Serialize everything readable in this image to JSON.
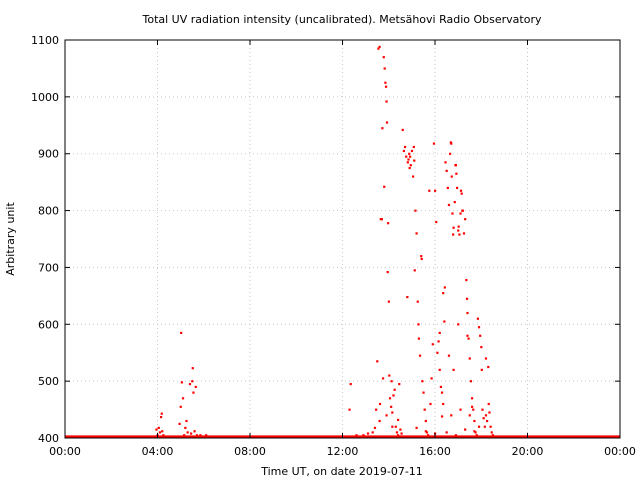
{
  "chart_data": {
    "type": "scatter",
    "title": "Total UV radiation intensity (uncalibrated). Metsähovi Radio Observatory",
    "xlabel": "Time UT, on date 2019-07-11",
    "ylabel": "Arbitrary unit",
    "xlim": [
      0,
      24
    ],
    "ylim": [
      400,
      1100
    ],
    "grid": true,
    "x_ticks": [
      {
        "value": 0,
        "label": "00:00"
      },
      {
        "value": 4,
        "label": "04:00"
      },
      {
        "value": 8,
        "label": "08:00"
      },
      {
        "value": 12,
        "label": "12:00"
      },
      {
        "value": 16,
        "label": "16:00"
      },
      {
        "value": 20,
        "label": "20:00"
      },
      {
        "value": 24,
        "label": "00:00"
      }
    ],
    "y_ticks": [
      400,
      500,
      600,
      700,
      800,
      900,
      1000,
      1100
    ],
    "series": [
      {
        "color": "#ff0000",
        "baseline": {
          "y": 402,
          "x_from": 0,
          "x_to": 24
        },
        "points": [
          [
            3.95,
            415
          ],
          [
            4.0,
            405
          ],
          [
            4.05,
            418
          ],
          [
            4.1,
            410
          ],
          [
            4.15,
            437
          ],
          [
            4.18,
            443
          ],
          [
            4.2,
            412
          ],
          [
            4.25,
            405
          ],
          [
            4.95,
            425
          ],
          [
            5.0,
            455
          ],
          [
            5.02,
            585
          ],
          [
            5.05,
            498
          ],
          [
            5.1,
            470
          ],
          [
            5.15,
            405
          ],
          [
            5.2,
            418
          ],
          [
            5.25,
            430
          ],
          [
            5.3,
            410
          ],
          [
            5.4,
            495
          ],
          [
            5.45,
            408
          ],
          [
            5.5,
            500
          ],
          [
            5.52,
            523
          ],
          [
            5.55,
            480
          ],
          [
            5.6,
            412
          ],
          [
            5.65,
            490
          ],
          [
            5.7,
            405
          ],
          [
            5.85,
            405
          ],
          [
            6.1,
            405
          ],
          [
            12.3,
            450
          ],
          [
            12.35,
            495
          ],
          [
            12.6,
            405
          ],
          [
            12.9,
            405
          ],
          [
            13.1,
            408
          ],
          [
            13.2,
            402
          ],
          [
            13.3,
            410
          ],
          [
            13.4,
            418
          ],
          [
            13.45,
            450
          ],
          [
            13.5,
            535
          ],
          [
            13.55,
            1085
          ],
          [
            13.6,
            1088
          ],
          [
            13.62,
            460
          ],
          [
            13.65,
            785
          ],
          [
            13.7,
            785
          ],
          [
            13.72,
            945
          ],
          [
            13.75,
            505
          ],
          [
            13.78,
            1070
          ],
          [
            13.8,
            842
          ],
          [
            13.82,
            1050
          ],
          [
            13.85,
            1025
          ],
          [
            13.88,
            1018
          ],
          [
            13.9,
            992
          ],
          [
            13.92,
            955
          ],
          [
            13.95,
            692
          ],
          [
            13.97,
            778
          ],
          [
            14.0,
            640
          ],
          [
            14.02,
            510
          ],
          [
            14.05,
            470
          ],
          [
            14.1,
            455
          ],
          [
            14.12,
            500
          ],
          [
            14.15,
            445
          ],
          [
            14.2,
            475
          ],
          [
            14.25,
            485
          ],
          [
            14.3,
            420
          ],
          [
            14.35,
            410
          ],
          [
            14.4,
            405
          ],
          [
            14.45,
            495
          ],
          [
            14.5,
            415
          ],
          [
            14.55,
            408
          ],
          [
            14.6,
            942
          ],
          [
            14.65,
            905
          ],
          [
            14.7,
            912
          ],
          [
            14.75,
            895
          ],
          [
            14.8,
            648
          ],
          [
            14.82,
            885
          ],
          [
            14.85,
            890
          ],
          [
            14.88,
            900
          ],
          [
            14.9,
            875
          ],
          [
            14.92,
            895
          ],
          [
            14.95,
            880
          ],
          [
            15.0,
            905
          ],
          [
            15.05,
            860
          ],
          [
            15.08,
            912
          ],
          [
            15.1,
            888
          ],
          [
            15.12,
            695
          ],
          [
            15.15,
            800
          ],
          [
            15.2,
            760
          ],
          [
            15.25,
            640
          ],
          [
            15.28,
            600
          ],
          [
            15.3,
            575
          ],
          [
            15.35,
            545
          ],
          [
            15.4,
            720
          ],
          [
            15.42,
            715
          ],
          [
            15.45,
            500
          ],
          [
            15.5,
            480
          ],
          [
            15.55,
            450
          ],
          [
            15.6,
            430
          ],
          [
            15.65,
            410
          ],
          [
            15.7,
            405
          ],
          [
            15.75,
            835
          ],
          [
            15.8,
            460
          ],
          [
            15.85,
            505
          ],
          [
            15.9,
            565
          ],
          [
            15.95,
            918
          ],
          [
            16.0,
            835
          ],
          [
            16.05,
            780
          ],
          [
            16.1,
            550
          ],
          [
            16.15,
            570
          ],
          [
            16.2,
            520
          ],
          [
            16.25,
            490
          ],
          [
            16.3,
            480
          ],
          [
            16.35,
            460
          ],
          [
            16.4,
            605
          ],
          [
            16.42,
            665
          ],
          [
            16.45,
            885
          ],
          [
            16.5,
            870
          ],
          [
            16.55,
            840
          ],
          [
            16.6,
            810
          ],
          [
            16.65,
            900
          ],
          [
            16.68,
            920
          ],
          [
            16.7,
            918
          ],
          [
            16.72,
            860
          ],
          [
            16.75,
            795
          ],
          [
            16.78,
            758
          ],
          [
            16.8,
            770
          ],
          [
            16.85,
            815
          ],
          [
            16.88,
            880
          ],
          [
            16.9,
            880
          ],
          [
            16.92,
            865
          ],
          [
            16.95,
            840
          ],
          [
            17.0,
            765
          ],
          [
            17.02,
            772
          ],
          [
            17.05,
            758
          ],
          [
            17.1,
            795
          ],
          [
            17.12,
            835
          ],
          [
            17.15,
            830
          ],
          [
            17.18,
            800
          ],
          [
            17.2,
            800
          ],
          [
            17.25,
            760
          ],
          [
            17.3,
            785
          ],
          [
            17.35,
            678
          ],
          [
            17.38,
            645
          ],
          [
            17.4,
            620
          ],
          [
            17.45,
            575
          ],
          [
            17.5,
            540
          ],
          [
            17.55,
            500
          ],
          [
            17.6,
            470
          ],
          [
            17.65,
            450
          ],
          [
            17.7,
            430
          ],
          [
            17.75,
            410
          ],
          [
            17.8,
            405
          ],
          [
            17.85,
            610
          ],
          [
            17.9,
            595
          ],
          [
            17.95,
            580
          ],
          [
            18.0,
            560
          ],
          [
            18.02,
            520
          ],
          [
            18.05,
            450
          ],
          [
            18.1,
            435
          ],
          [
            18.15,
            420
          ],
          [
            18.2,
            440
          ],
          [
            18.25,
            430
          ],
          [
            18.3,
            525
          ],
          [
            18.32,
            460
          ],
          [
            18.35,
            445
          ],
          [
            18.4,
            420
          ],
          [
            18.45,
            410
          ],
          [
            18.5,
            405
          ],
          [
            16.3,
            438
          ],
          [
            16.5,
            410
          ],
          [
            16.7,
            440
          ],
          [
            16.9,
            405
          ],
          [
            17.1,
            450
          ],
          [
            17.3,
            415
          ],
          [
            17.5,
            440
          ],
          [
            17.7,
            412
          ],
          [
            17.9,
            420
          ],
          [
            13.6,
            430
          ],
          [
            13.9,
            440
          ],
          [
            14.15,
            420
          ],
          [
            14.4,
            432
          ],
          [
            15.2,
            418
          ],
          [
            15.6,
            412
          ],
          [
            16.0,
            408
          ],
          [
            16.35,
            655
          ],
          [
            16.6,
            545
          ],
          [
            17.0,
            600
          ],
          [
            17.4,
            580
          ],
          [
            16.8,
            520
          ],
          [
            16.2,
            585
          ],
          [
            17.6,
            455
          ],
          [
            18.2,
            540
          ]
        ]
      }
    ]
  }
}
